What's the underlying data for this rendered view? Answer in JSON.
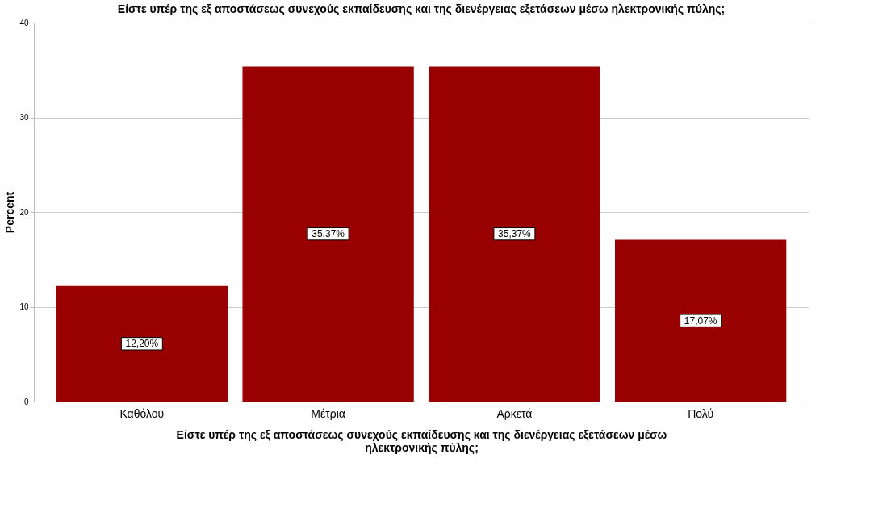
{
  "chart_data": {
    "type": "bar",
    "title": "Είστε υπέρ της εξ αποστάσεως συνεχούς εκπαίδευσης και της διενέργειας εξετάσεων μέσω ηλεκτρονικής πύλης;",
    "xlabel": "Είστε υπέρ της εξ αποστάσεως συνεχούς εκπαίδευσης και της διενέργειας εξετάσεων μέσω ηλεκτρονικής πύλης;",
    "ylabel": "Percent",
    "categories": [
      "Καθόλου",
      "Μέτρια",
      "Αρκετά",
      "Πολύ"
    ],
    "values": [
      12.2,
      35.37,
      35.37,
      17.07
    ],
    "value_labels": [
      "12,20%",
      "35,37%",
      "35,37%",
      "17,07%"
    ],
    "color": "#990000",
    "ylim": [
      0,
      40
    ],
    "yticks": [
      0,
      10,
      20,
      30,
      40
    ],
    "grid": "y"
  }
}
